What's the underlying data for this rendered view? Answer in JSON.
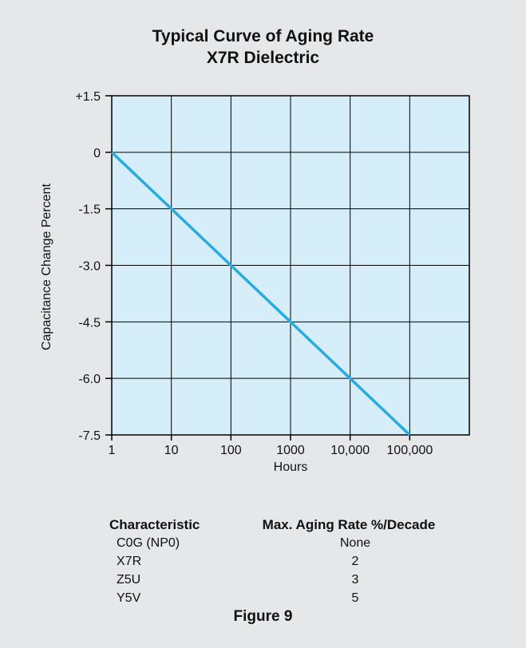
{
  "chart_data": {
    "type": "line",
    "title": [
      "Typical Curve of Aging Rate",
      "X7R Dielectric"
    ],
    "xlabel": "Hours",
    "ylabel": "Capacitance Change Percent",
    "x_scale": "log",
    "x_ticks": [
      1,
      10,
      100,
      1000,
      10000,
      100000
    ],
    "x_tick_labels": [
      "1",
      "10",
      "100",
      "1000",
      "10,000",
      "100,000"
    ],
    "xlim": [
      1,
      1000000
    ],
    "y_ticks": [
      1.5,
      0,
      -1.5,
      -3.0,
      -4.5,
      -6.0,
      -7.5
    ],
    "y_tick_labels": [
      "+1.5",
      "0",
      "-1.5",
      "-3.0",
      "-4.5",
      "-6.0",
      "-7.5"
    ],
    "ylim": [
      -7.5,
      1.5
    ],
    "grid": true,
    "series": [
      {
        "x": [
          1,
          10,
          100,
          1000,
          10000,
          100000
        ],
        "y": [
          0,
          -1.5,
          -3.0,
          -4.5,
          -6.0,
          -7.5
        ]
      }
    ],
    "colors": {
      "plot_bg": "#d5eef9",
      "line": "#2aabe0",
      "grid": "#000000",
      "panel": "#e6e7e8"
    }
  },
  "table": {
    "headers": [
      "Characteristic",
      "Max. Aging Rate %/Decade"
    ],
    "rows": [
      [
        "C0G (NP0)",
        "None"
      ],
      [
        "X7R",
        "2"
      ],
      [
        "Z5U",
        "3"
      ],
      [
        "Y5V",
        "5"
      ]
    ]
  },
  "figure_label": "Figure 9"
}
